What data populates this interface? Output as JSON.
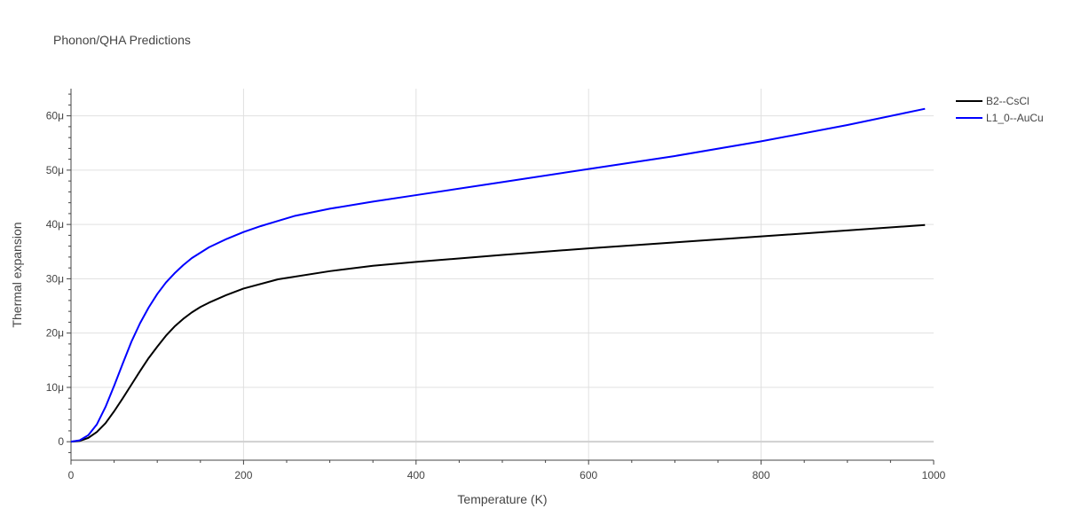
{
  "chart_data": {
    "type": "line",
    "title": "Phonon/QHA Predictions",
    "xlabel": "Temperature (K)",
    "ylabel": "Thermal expansion",
    "xlim": [
      0,
      1000
    ],
    "ylim": [
      -3.4,
      65
    ],
    "x_ticks": [
      0,
      200,
      400,
      600,
      800,
      1000
    ],
    "x_tick_labels": [
      "0",
      "200",
      "400",
      "600",
      "800",
      "1000"
    ],
    "y_ticks": [
      0,
      10,
      20,
      30,
      40,
      50,
      60
    ],
    "y_tick_labels": [
      "0",
      "10μ",
      "20μ",
      "30μ",
      "40μ",
      "50μ",
      "60μ"
    ],
    "grid": true,
    "legend_position": "top-right",
    "series": [
      {
        "name": "B2--CsCl",
        "color": "#000000",
        "x": [
          0,
          10,
          20,
          30,
          40,
          50,
          60,
          70,
          80,
          90,
          100,
          110,
          120,
          130,
          140,
          150,
          160,
          180,
          200,
          240,
          300,
          350,
          400,
          500,
          600,
          700,
          800,
          900,
          990
        ],
        "y": [
          0,
          0.15,
          0.7,
          1.8,
          3.4,
          5.6,
          8.0,
          10.5,
          13.0,
          15.4,
          17.5,
          19.5,
          21.2,
          22.6,
          23.8,
          24.8,
          25.6,
          27.0,
          28.2,
          29.9,
          31.4,
          32.4,
          33.1,
          34.4,
          35.6,
          36.7,
          37.8,
          38.9,
          39.9
        ]
      },
      {
        "name": "L1_0--AuCu",
        "color": "#0000ff",
        "x": [
          0,
          10,
          20,
          30,
          40,
          50,
          60,
          70,
          80,
          90,
          100,
          110,
          120,
          130,
          140,
          160,
          180,
          200,
          220,
          260,
          300,
          350,
          400,
          500,
          600,
          700,
          800,
          900,
          990
        ],
        "y": [
          0,
          0.25,
          1.2,
          3.2,
          6.4,
          10.3,
          14.4,
          18.4,
          21.8,
          24.7,
          27.2,
          29.3,
          31.0,
          32.5,
          33.8,
          35.8,
          37.3,
          38.6,
          39.7,
          41.6,
          42.9,
          44.2,
          45.4,
          47.8,
          50.2,
          52.6,
          55.3,
          58.3,
          61.3
        ]
      }
    ]
  }
}
